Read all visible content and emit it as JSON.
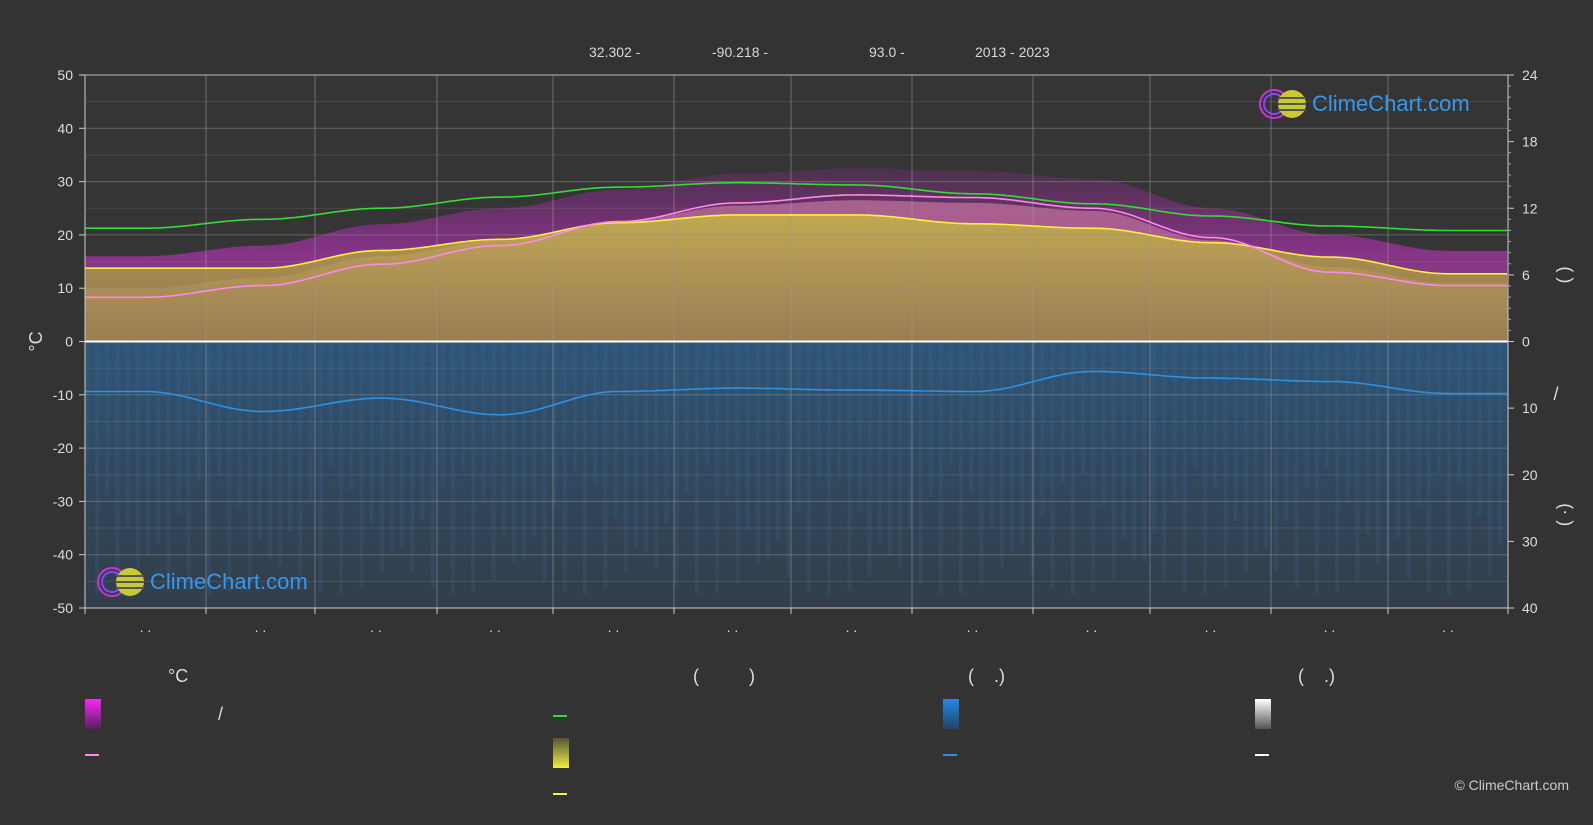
{
  "header": {
    "lat": "32.302 -",
    "lon": "-90.218 -",
    "elevation": "93.0 -",
    "years": "2013 - 2023"
  },
  "logo": {
    "text": "ClimeChart.com"
  },
  "copyright": "© ClimeChart.com",
  "legend": {
    "col1_title": "°C",
    "col1_slash": "/",
    "col2_title": "(          )",
    "col3_title": "(    .)",
    "col4_title": "(    .)"
  },
  "colors": {
    "bg": "#333333",
    "max_temp_band": "#dd22dd",
    "mean_temp_line": "#ff88ee",
    "daylight_line": "#33dd33",
    "sunshine_band": "#cccc33",
    "sunshine_line": "#ffee44",
    "rain_band": "#1f6aa8",
    "rain_line": "#2e90e0",
    "snow_line": "#ffffff"
  },
  "chart_data": {
    "type": "area",
    "x_months": 12,
    "month_tick_labels": [
      ". .",
      ". .",
      ". .",
      ". .",
      ". .",
      ". .",
      ". .",
      ". .",
      ". .",
      ". .",
      ". .",
      ". ."
    ],
    "left_axis": {
      "label": "°C",
      "min": -50,
      "max": 50,
      "ticks": [
        50,
        40,
        30,
        20,
        10,
        0,
        -10,
        -20,
        -30,
        -40,
        -50
      ]
    },
    "right_axis_top": {
      "min": 0,
      "max": 24,
      "ticks": [
        24,
        18,
        12,
        6,
        0
      ],
      "label": "(    )"
    },
    "right_axis_bottom": {
      "min": 0,
      "max": 40,
      "ticks": [
        0,
        10,
        20,
        30,
        40
      ],
      "label_a": "/",
      "label_b": "(·   )"
    },
    "series": [
      {
        "key": "daylight_hours",
        "values": [
          10.2,
          11.0,
          12.0,
          13.0,
          13.9,
          14.3,
          14.1,
          13.3,
          12.4,
          11.3,
          10.4,
          10.0
        ]
      },
      {
        "key": "sunshine_hours",
        "values": [
          6.6,
          6.6,
          8.2,
          9.2,
          10.7,
          11.4,
          11.4,
          10.6,
          10.2,
          8.9,
          7.6,
          6.1
        ]
      },
      {
        "key": "mean_temp",
        "values": [
          8.3,
          10.5,
          14.5,
          18.0,
          22.5,
          26.0,
          27.5,
          27.0,
          25.0,
          19.5,
          13.0,
          10.5
        ]
      },
      {
        "key": "max_temp",
        "values": [
          16.0,
          18.0,
          22.0,
          25.0,
          28.5,
          31.5,
          32.5,
          32.0,
          30.5,
          25.0,
          20.0,
          17.0
        ]
      },
      {
        "key": "min_temp",
        "values": [
          2.0,
          4.0,
          7.0,
          11.0,
          16.0,
          20.5,
          22.0,
          21.5,
          18.5,
          12.0,
          6.5,
          4.0
        ]
      },
      {
        "key": "precipitation_mm",
        "values": [
          7.5,
          10.5,
          8.5,
          11.0,
          7.5,
          7.0,
          7.3,
          7.5,
          4.5,
          5.5,
          6.0,
          7.8
        ]
      }
    ]
  }
}
